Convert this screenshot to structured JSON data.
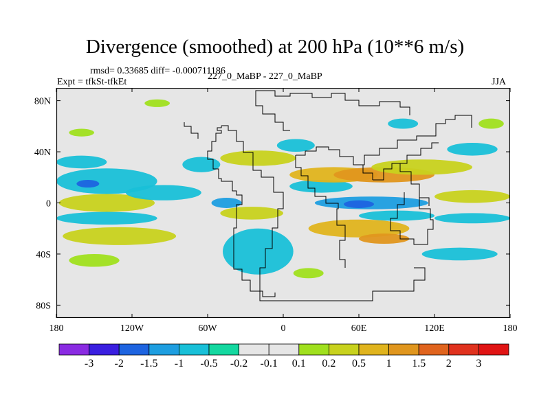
{
  "chart_data": {
    "type": "heatmap",
    "title": "Divergence (smoothed) at 200 hPa (10**6 m/s)",
    "stats_text": "rmsd= 0.33685 diff= -0.000711186",
    "experiment_label": "Expt = tfkSt-tfkEt",
    "comparison_label": "227_0_MaBP - 227_0_MaBP",
    "season": "JJA",
    "xlim": [
      -180,
      180
    ],
    "ylim": [
      -90,
      90
    ],
    "x_ticks": [
      {
        "value": -180,
        "label": "180"
      },
      {
        "value": -120,
        "label": "120W"
      },
      {
        "value": -60,
        "label": "60W"
      },
      {
        "value": 0,
        "label": "0"
      },
      {
        "value": 60,
        "label": "60E"
      },
      {
        "value": 120,
        "label": "120E"
      },
      {
        "value": 180,
        "label": "180"
      }
    ],
    "y_ticks": [
      {
        "value": 80,
        "label": "80N"
      },
      {
        "value": 40,
        "label": "40N"
      },
      {
        "value": 0,
        "label": "0"
      },
      {
        "value": -40,
        "label": "40S"
      },
      {
        "value": -80,
        "label": "80S"
      }
    ],
    "colorbar": {
      "labels": [
        "-3",
        "-2",
        "-1.5",
        "-1",
        "-0.5",
        "-0.2",
        "-0.1",
        "0.1",
        "0.2",
        "0.5",
        "1",
        "1.5",
        "2",
        "3"
      ],
      "colors": [
        "#8a2be2",
        "#3a1fe0",
        "#1e64e0",
        "#1e9ee0",
        "#19c0d8",
        "#14d8a0",
        "#e6e6e6",
        "#a0e01e",
        "#c8d21e",
        "#e0b41e",
        "#e0961e",
        "#e0641e",
        "#e0321e",
        "#e01414"
      ]
    },
    "regions": [
      {
        "name": "south-pacific-cyan-band",
        "lon": -140,
        "lat": 17,
        "dlon": 40,
        "dlat": 10,
        "value": -1.0
      },
      {
        "name": "pacific-blue-core",
        "lon": -155,
        "lat": 15,
        "dlon": 9,
        "dlat": 3,
        "value": -2.0
      },
      {
        "name": "pacific-yellow-band-0",
        "lon": -140,
        "lat": 0,
        "dlon": 38,
        "dlat": 7,
        "value": 0.5
      },
      {
        "name": "pacific-yellow-band-30s",
        "lon": -130,
        "lat": -26,
        "dlon": 45,
        "dlat": 7,
        "value": 0.5
      },
      {
        "name": "pacific-cyan-band-15s",
        "lon": -140,
        "lat": -12,
        "dlon": 40,
        "dlat": 5,
        "value": -0.5
      },
      {
        "name": "pacific-cyan-40n",
        "lon": -160,
        "lat": 32,
        "dlon": 20,
        "dlat": 5,
        "value": -0.3
      },
      {
        "name": "pacific-green-45s",
        "lon": -150,
        "lat": -45,
        "dlon": 20,
        "dlat": 5,
        "value": 0.2
      },
      {
        "name": "central-pacific-cyan",
        "lon": -95,
        "lat": 8,
        "dlon": 30,
        "dlat": 6,
        "value": -0.5
      },
      {
        "name": "atlantic-blue-0",
        "lon": -45,
        "lat": 0,
        "dlon": 12,
        "dlat": 4,
        "value": -1.5
      },
      {
        "name": "atlantic-cyan-large",
        "lon": -20,
        "lat": -38,
        "dlon": 28,
        "dlat": 18,
        "value": -0.5
      },
      {
        "name": "atlantic-yellow-5s",
        "lon": -25,
        "lat": -8,
        "dlon": 25,
        "dlat": 5,
        "value": 0.5
      },
      {
        "name": "america-cyan-30n",
        "lon": -65,
        "lat": 30,
        "dlon": 15,
        "dlat": 6,
        "value": -0.5
      },
      {
        "name": "atlantic-yellow-35n",
        "lon": -20,
        "lat": 35,
        "dlon": 30,
        "dlat": 6,
        "value": 0.5
      },
      {
        "name": "europe-cyan-45n",
        "lon": 10,
        "lat": 45,
        "dlon": 15,
        "dlat": 5,
        "value": -0.3
      },
      {
        "name": "africa-cyan-10n",
        "lon": 30,
        "lat": 13,
        "dlon": 25,
        "dlat": 5,
        "value": -0.5
      },
      {
        "name": "africa-yellow-20n",
        "lon": 40,
        "lat": 22,
        "dlon": 35,
        "dlat": 6,
        "value": 0.8
      },
      {
        "name": "indian-blue-0",
        "lon": 70,
        "lat": 0,
        "dlon": 45,
        "dlat": 5,
        "value": -1.5
      },
      {
        "name": "indian-blue-core",
        "lon": 60,
        "lat": -1,
        "dlon": 12,
        "dlat": 3,
        "value": -2.0
      },
      {
        "name": "asia-orange-20n",
        "lon": 80,
        "lat": 22,
        "dlon": 40,
        "dlat": 6,
        "value": 1.2
      },
      {
        "name": "asia-yellow-30n",
        "lon": 110,
        "lat": 28,
        "dlon": 40,
        "dlat": 6,
        "value": 0.5
      },
      {
        "name": "indian-yellow-15s",
        "lon": 60,
        "lat": -20,
        "dlon": 40,
        "dlat": 7,
        "value": 0.8
      },
      {
        "name": "indian-orange-30s",
        "lon": 80,
        "lat": -28,
        "dlon": 20,
        "dlat": 4,
        "value": 1.2
      },
      {
        "name": "indian-cyan-10s",
        "lon": 90,
        "lat": -10,
        "dlon": 30,
        "dlat": 4,
        "value": -0.4
      },
      {
        "name": "australia-cyan-40s",
        "lon": 140,
        "lat": -40,
        "dlon": 30,
        "dlat": 5,
        "value": -0.4
      },
      {
        "name": "west-pacific-yellow-5n",
        "lon": 150,
        "lat": 5,
        "dlon": 30,
        "dlat": 5,
        "value": 0.5
      },
      {
        "name": "west-pacific-cyan-10s",
        "lon": 150,
        "lat": -12,
        "dlon": 30,
        "dlat": 4,
        "value": -0.4
      },
      {
        "name": "east-asia-cyan-60n",
        "lon": 95,
        "lat": 62,
        "dlon": 12,
        "dlat": 4,
        "value": -0.3
      },
      {
        "name": "north-pacific-cyan-40n",
        "lon": 150,
        "lat": 42,
        "dlon": 20,
        "dlat": 5,
        "value": -0.4
      },
      {
        "name": "north-pacific-green-60n",
        "lon": 165,
        "lat": 62,
        "dlon": 10,
        "dlat": 4,
        "value": 0.2
      },
      {
        "name": "arctic-green-78n",
        "lon": -100,
        "lat": 78,
        "dlon": 10,
        "dlat": 3,
        "value": 0.2
      },
      {
        "name": "arctic-green-55n",
        "lon": -160,
        "lat": 55,
        "dlon": 10,
        "dlat": 3,
        "value": 0.2
      },
      {
        "name": "south-atl-green-50s",
        "lon": 20,
        "lat": -55,
        "dlon": 12,
        "dlat": 4,
        "value": 0.15
      }
    ]
  }
}
